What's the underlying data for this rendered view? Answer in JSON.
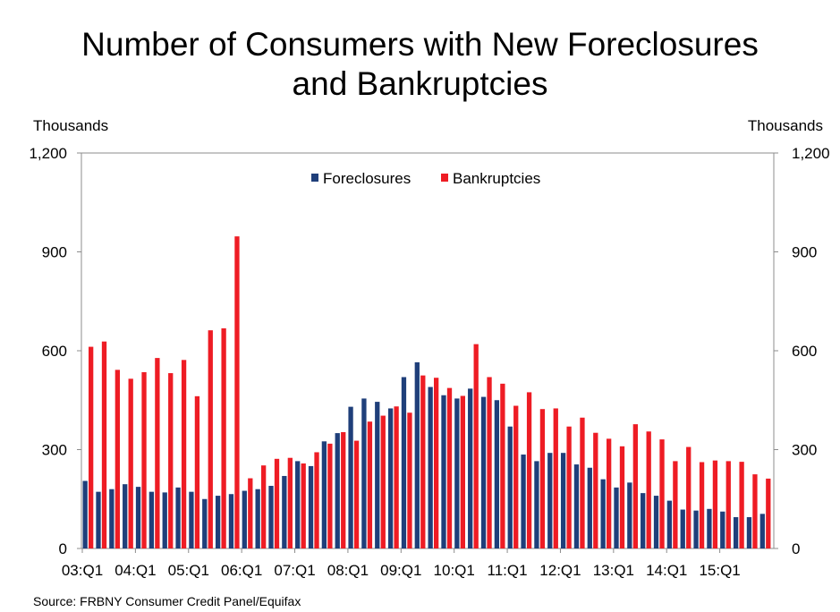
{
  "title_lines": [
    "Number of Consumers with New Foreclosures",
    "and Bankruptcies"
  ],
  "source": "Source: FRBNY Consumer Credit Panel/Equifax",
  "chart_data": {
    "type": "bar",
    "title": "Number of Consumers with New Foreclosures and Bankruptcies",
    "ylabel_left": "Thousands",
    "ylabel_right": "Thousands",
    "ylim": [
      0,
      1200
    ],
    "yticks": [
      0,
      300,
      600,
      900,
      1200
    ],
    "ytick_labels": [
      "0",
      "300",
      "600",
      "900",
      "1,200"
    ],
    "grid": false,
    "legend_position": "top-center",
    "x_tick_labels": [
      "03:Q1",
      "04:Q1",
      "05:Q1",
      "06:Q1",
      "07:Q1",
      "08:Q1",
      "09:Q1",
      "10:Q1",
      "11:Q1",
      "12:Q1",
      "13:Q1",
      "14:Q1",
      "15:Q1"
    ],
    "categories": [
      "03:Q1",
      "03:Q2",
      "03:Q3",
      "03:Q4",
      "04:Q1",
      "04:Q2",
      "04:Q3",
      "04:Q4",
      "05:Q1",
      "05:Q2",
      "05:Q3",
      "05:Q4",
      "06:Q1",
      "06:Q2",
      "06:Q3",
      "06:Q4",
      "07:Q1",
      "07:Q2",
      "07:Q3",
      "07:Q4",
      "08:Q1",
      "08:Q2",
      "08:Q3",
      "08:Q4",
      "09:Q1",
      "09:Q2",
      "09:Q3",
      "09:Q4",
      "10:Q1",
      "10:Q2",
      "10:Q3",
      "10:Q4",
      "11:Q1",
      "11:Q2",
      "11:Q3",
      "11:Q4",
      "12:Q1",
      "12:Q2",
      "12:Q3",
      "12:Q4",
      "13:Q1",
      "13:Q2",
      "13:Q3",
      "13:Q4",
      "14:Q1",
      "14:Q2",
      "14:Q3",
      "14:Q4",
      "15:Q1",
      "15:Q2",
      "15:Q3",
      "15:Q4"
    ],
    "series": [
      {
        "name": "Foreclosures",
        "color": "#1f3f7a",
        "values": [
          205,
          172,
          180,
          195,
          187,
          172,
          170,
          185,
          172,
          150,
          160,
          165,
          175,
          180,
          190,
          220,
          265,
          250,
          325,
          350,
          430,
          455,
          445,
          425,
          520,
          565,
          490,
          465,
          455,
          485,
          460,
          450,
          370,
          285,
          265,
          290,
          290,
          255,
          245,
          210,
          185,
          200,
          168,
          160,
          145,
          118,
          115,
          120,
          112,
          95,
          95,
          105
        ]
      },
      {
        "name": "Bankruptcies",
        "color": "#ee1c24",
        "values": [
          612,
          628,
          542,
          515,
          535,
          578,
          532,
          572,
          462,
          662,
          668,
          947,
          213,
          252,
          272,
          275,
          258,
          292,
          318,
          353,
          327,
          385,
          403,
          431,
          412,
          525,
          518,
          487,
          463,
          620,
          520,
          500,
          433,
          474,
          423,
          425,
          370,
          397,
          351,
          333,
          310,
          377,
          355,
          331,
          265,
          308,
          262,
          267,
          265,
          263,
          225,
          212
        ]
      }
    ]
  }
}
